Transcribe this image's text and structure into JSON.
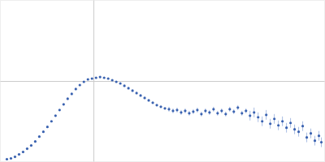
{
  "chart_data": {
    "type": "scatter",
    "tick_labels": false,
    "grid": true,
    "xlim": [
      0,
      8
    ],
    "ylim": [
      0,
      2
    ],
    "xticks": [
      2.3
    ],
    "yticks": [
      1
    ],
    "series": [
      {
        "color": "#3a62b0",
        "marker": "circle",
        "x": [
          0.16,
          0.26,
          0.36,
          0.46,
          0.56,
          0.66,
          0.76,
          0.86,
          0.96,
          1.06,
          1.16,
          1.26,
          1.36,
          1.46,
          1.56,
          1.66,
          1.76,
          1.86,
          1.96,
          2.06,
          2.16,
          2.26,
          2.36,
          2.46,
          2.56,
          2.66,
          2.76,
          2.86,
          2.96,
          3.06,
          3.16,
          3.26,
          3.36,
          3.46,
          3.56,
          3.66,
          3.76,
          3.86,
          3.96,
          4.06,
          4.16,
          4.26,
          4.36,
          4.46,
          4.56,
          4.66,
          4.76,
          4.86,
          4.96,
          5.06,
          5.16,
          5.26,
          5.36,
          5.46,
          5.56,
          5.66,
          5.76,
          5.86,
          5.96,
          6.06,
          6.16,
          6.26,
          6.36,
          6.46,
          6.56,
          6.66,
          6.76,
          6.86,
          6.96,
          7.06,
          7.16,
          7.26,
          7.36,
          7.46,
          7.56,
          7.66,
          7.76,
          7.86,
          7.92
        ],
        "values": [
          0.03,
          0.04,
          0.06,
          0.09,
          0.12,
          0.16,
          0.2,
          0.25,
          0.31,
          0.37,
          0.43,
          0.5,
          0.57,
          0.64,
          0.71,
          0.78,
          0.84,
          0.9,
          0.95,
          0.99,
          1.02,
          1.03,
          1.04,
          1.05,
          1.04,
          1.03,
          1.01,
          0.99,
          0.97,
          0.94,
          0.91,
          0.88,
          0.85,
          0.82,
          0.79,
          0.76,
          0.73,
          0.7,
          0.68,
          0.66,
          0.65,
          0.63,
          0.64,
          0.61,
          0.63,
          0.6,
          0.62,
          0.64,
          0.59,
          0.63,
          0.61,
          0.65,
          0.6,
          0.63,
          0.59,
          0.65,
          0.62,
          0.67,
          0.6,
          0.63,
          0.57,
          0.61,
          0.55,
          0.5,
          0.58,
          0.47,
          0.53,
          0.45,
          0.5,
          0.42,
          0.48,
          0.4,
          0.37,
          0.44,
          0.3,
          0.35,
          0.26,
          0.32,
          0.24
        ],
        "errors": [
          0.005,
          0.005,
          0.005,
          0.005,
          0.005,
          0.005,
          0.005,
          0.005,
          0.005,
          0.005,
          0.005,
          0.005,
          0.005,
          0.005,
          0.005,
          0.005,
          0.005,
          0.005,
          0.005,
          0.005,
          0.01,
          0.01,
          0.01,
          0.01,
          0.01,
          0.01,
          0.01,
          0.01,
          0.01,
          0.01,
          0.01,
          0.01,
          0.01,
          0.01,
          0.01,
          0.01,
          0.01,
          0.01,
          0.01,
          0.01,
          0.03,
          0.03,
          0.03,
          0.03,
          0.03,
          0.03,
          0.03,
          0.03,
          0.03,
          0.03,
          0.03,
          0.03,
          0.03,
          0.03,
          0.03,
          0.03,
          0.03,
          0.03,
          0.03,
          0.03,
          0.06,
          0.06,
          0.06,
          0.06,
          0.06,
          0.06,
          0.06,
          0.06,
          0.06,
          0.06,
          0.06,
          0.06,
          0.06,
          0.06,
          0.06,
          0.06,
          0.06,
          0.06,
          0.06
        ]
      }
    ]
  }
}
